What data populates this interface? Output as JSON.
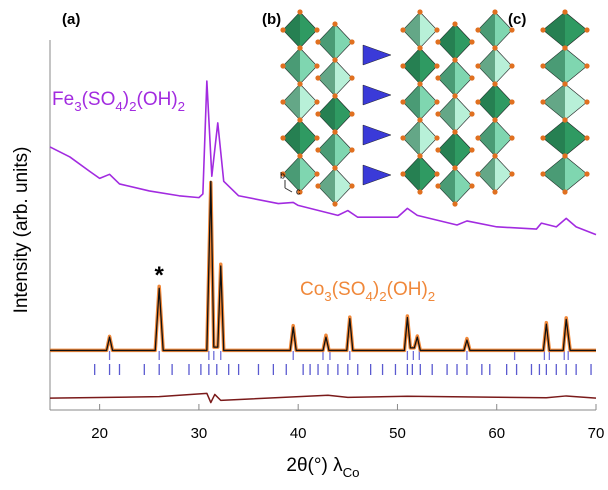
{
  "chart_data": {
    "type": "line",
    "panel_labels": [
      "(a)",
      "(b)",
      "(c)"
    ],
    "structure_axes": [
      "b",
      "c"
    ],
    "xlabel": "2θ(°) λCo",
    "ylabel": "Intensity (arb. units)",
    "xlim": [
      15,
      70
    ],
    "xticks": [
      20,
      30,
      40,
      50,
      60,
      70
    ],
    "ylim": [
      0,
      100
    ],
    "series": [
      {
        "name": "Fe3(SO4)2(OH)2",
        "color": "#a22be0",
        "x": [
          15,
          17,
          19,
          20,
          21,
          22,
          25,
          28,
          30,
          30.4,
          30.8,
          31.3,
          31.9,
          32.5,
          34,
          38,
          39.5,
          40,
          44,
          45,
          46,
          50,
          51,
          52,
          56,
          57,
          60,
          64,
          64.5,
          66,
          67,
          68,
          70
        ],
        "values": [
          71.1,
          68.4,
          64.5,
          62.6,
          63.7,
          61.1,
          59.2,
          57.9,
          57.4,
          58.4,
          88.9,
          63.2,
          77.6,
          61.8,
          57.9,
          55.8,
          56.1,
          55.3,
          52.6,
          53.9,
          52.1,
          52.1,
          54.5,
          52.6,
          50,
          51.1,
          49.5,
          48.9,
          50.5,
          49.5,
          51.8,
          49.5,
          47.4
        ]
      },
      {
        "name": "Co3(SO4)2(OH)2",
        "color": "#f0883a",
        "x": [
          15,
          20.7,
          21,
          21.3,
          25.6,
          26,
          26.4,
          30.8,
          31.2,
          31.5,
          31.9,
          32.2,
          32.5,
          39.2,
          39.5,
          39.8,
          42.5,
          42.8,
          43.1,
          44.9,
          45.2,
          45.5,
          50.7,
          51,
          51.3,
          51.7,
          52,
          52.3,
          56.7,
          57,
          57.3,
          64.7,
          65,
          65.3,
          66.7,
          67,
          67.4,
          70
        ],
        "values": [
          16.1,
          16.1,
          19.9,
          16.1,
          16.1,
          33.4,
          16.1,
          16.1,
          61.5,
          17,
          17,
          39.4,
          16.1,
          16.1,
          22.8,
          16.1,
          16.1,
          20.2,
          16.1,
          16.1,
          25.1,
          16.1,
          16.1,
          25.4,
          16.8,
          16.8,
          20,
          16.1,
          16.1,
          19.3,
          16.1,
          16.1,
          23.6,
          16.1,
          16.1,
          24.9,
          16.1,
          16.1
        ]
      },
      {
        "color": "#111111",
        "x": [
          15,
          20.7,
          21,
          21.3,
          25.6,
          26,
          26.4,
          30.8,
          31.2,
          31.5,
          31.9,
          32.2,
          32.5,
          39.2,
          39.5,
          39.8,
          42.5,
          42.8,
          43.1,
          44.9,
          45.2,
          45.5,
          50.7,
          51,
          51.3,
          51.7,
          52,
          52.3,
          56.7,
          57,
          57.3,
          64.7,
          65,
          65.3,
          66.7,
          67,
          67.4,
          70
        ],
        "values": [
          16.1,
          16.1,
          19.7,
          16.1,
          16.1,
          32.9,
          16.1,
          16.1,
          61.8,
          17,
          17,
          38.9,
          16.1,
          16.1,
          22.4,
          16.1,
          16.1,
          19.7,
          16.1,
          16.1,
          24.7,
          16.1,
          16.1,
          25,
          16.8,
          16.8,
          19.7,
          16.1,
          16.1,
          18.9,
          16.1,
          16.1,
          23.2,
          16.1,
          16.1,
          24.5,
          16.1,
          16.1
        ]
      },
      {
        "color": "#7a1a1a",
        "x": [
          15,
          26,
          30.8,
          31.2,
          31.6,
          32.2,
          43,
          45,
          51,
          65,
          67,
          70
        ],
        "values": [
          3.2,
          3.6,
          4.5,
          2.0,
          4.2,
          2.6,
          4.0,
          3.4,
          3.7,
          3.3,
          3.8,
          3.2
        ]
      }
    ],
    "bragg_positions": [
      {
        "color": "#6f6fd8",
        "x": [
          21,
          26,
          31,
          31.5,
          32.2,
          39.5,
          42.5,
          43.2,
          45.2,
          51,
          51.6,
          52.2,
          57,
          61.8,
          64.8,
          65.3,
          66.8,
          67.2
        ]
      },
      {
        "color": "#5a5ad0",
        "x": [
          19.5,
          21,
          22,
          24.5,
          26,
          27.3,
          29,
          30.2,
          31,
          31.8,
          33,
          34,
          36,
          37.5,
          38.8,
          40.5,
          41.2,
          42,
          43,
          44,
          45,
          46,
          47.3,
          48.5,
          49.8,
          51,
          51.5,
          52.3,
          53.5,
          55,
          56,
          57,
          58.5,
          59.3,
          61,
          62,
          63.5,
          64.3,
          65,
          66,
          67,
          68,
          69.5
        ]
      }
    ],
    "annotations": [
      {
        "text": "*",
        "x": 26,
        "y": 36
      }
    ]
  }
}
